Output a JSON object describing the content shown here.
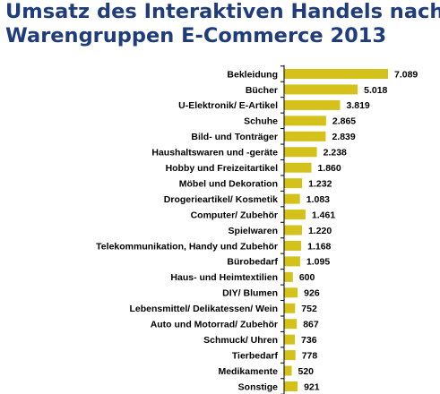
{
  "header": {
    "title_line1": "Umsatz des Interaktiven Handels nach",
    "title_line2": "Warengruppen  E-Commerce 2013"
  },
  "colors": {
    "title": "#1f3d7a",
    "bar": "#d4c21a",
    "axis": "#000000"
  },
  "chart_data": {
    "type": "bar",
    "orientation": "horizontal",
    "categories": [
      "Bekleidung",
      "Bücher",
      "U-Elektronik/ E-Artikel",
      "Schuhe",
      "Bild- und Tonträger",
      "Haushaltswaren und -geräte",
      "Hobby und Freizeitartikel",
      "Möbel und Dekoration",
      "Drogerieartikel/ Kosmetik",
      "Computer/ Zubehör",
      "Spielwaren",
      "Telekommunikation, Handy und Zubehör",
      "Bürobedarf",
      "Haus- und Heimtextilien",
      "DIY/ Blumen",
      "Lebensmittel/ Delikatessen/ Wein",
      "Auto und Motorrad/ Zubehör",
      "Schmuck/ Uhren",
      "Tierbedarf",
      "Medikamente",
      "Sonstige"
    ],
    "values": [
      7089,
      5018,
      3819,
      2865,
      2839,
      2238,
      1860,
      1232,
      1083,
      1461,
      1220,
      1168,
      1095,
      600,
      926,
      752,
      867,
      736,
      778,
      520,
      921
    ],
    "value_labels": [
      "7.089",
      "5.018",
      "3.819",
      "2.865",
      "2.839",
      "2.238",
      "1.860",
      "1.232",
      "1.083",
      "1.461",
      "1.220",
      "1.168",
      "1.095",
      "600",
      "926",
      "752",
      "867",
      "736",
      "778",
      "520",
      "921"
    ],
    "xlim": [
      0,
      7089
    ],
    "grid": false,
    "legend": "none"
  }
}
